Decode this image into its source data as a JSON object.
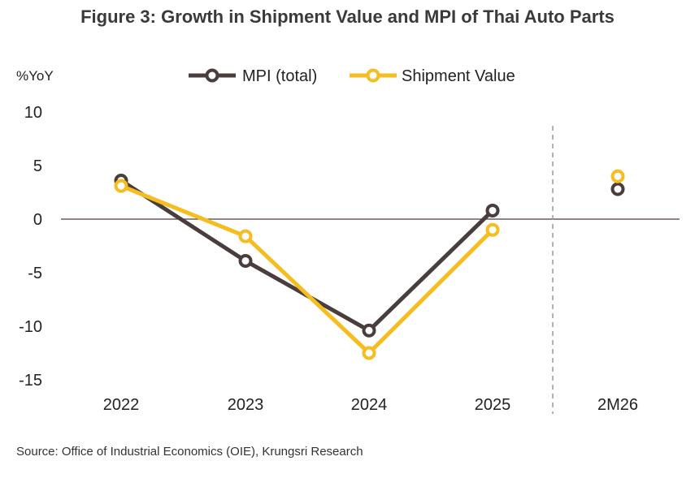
{
  "chart_data": {
    "type": "line",
    "title": "Figure 3: Growth in Shipment Value and MPI of Thai Auto Parts",
    "ylabel": "%YoY",
    "categories": [
      "2022",
      "2023",
      "2024",
      "2025",
      "2M26"
    ],
    "ylim": [
      -15,
      10
    ],
    "yticks": [
      10,
      5,
      0,
      -5,
      -10,
      -15
    ],
    "series": [
      {
        "name": "MPI (total)",
        "color": "#4a3d3d",
        "values": [
          3.6,
          -3.9,
          -10.4,
          0.8,
          2.8
        ]
      },
      {
        "name": "Shipment Value",
        "color": "#f5bd1f",
        "values": [
          3.1,
          -1.6,
          -12.5,
          -1.0,
          4.0
        ]
      }
    ],
    "legend": "top-center",
    "grid": false,
    "separator_before": "2M26"
  },
  "source": "Source: Office of Industrial Economics (OIE), Krungsri Research"
}
